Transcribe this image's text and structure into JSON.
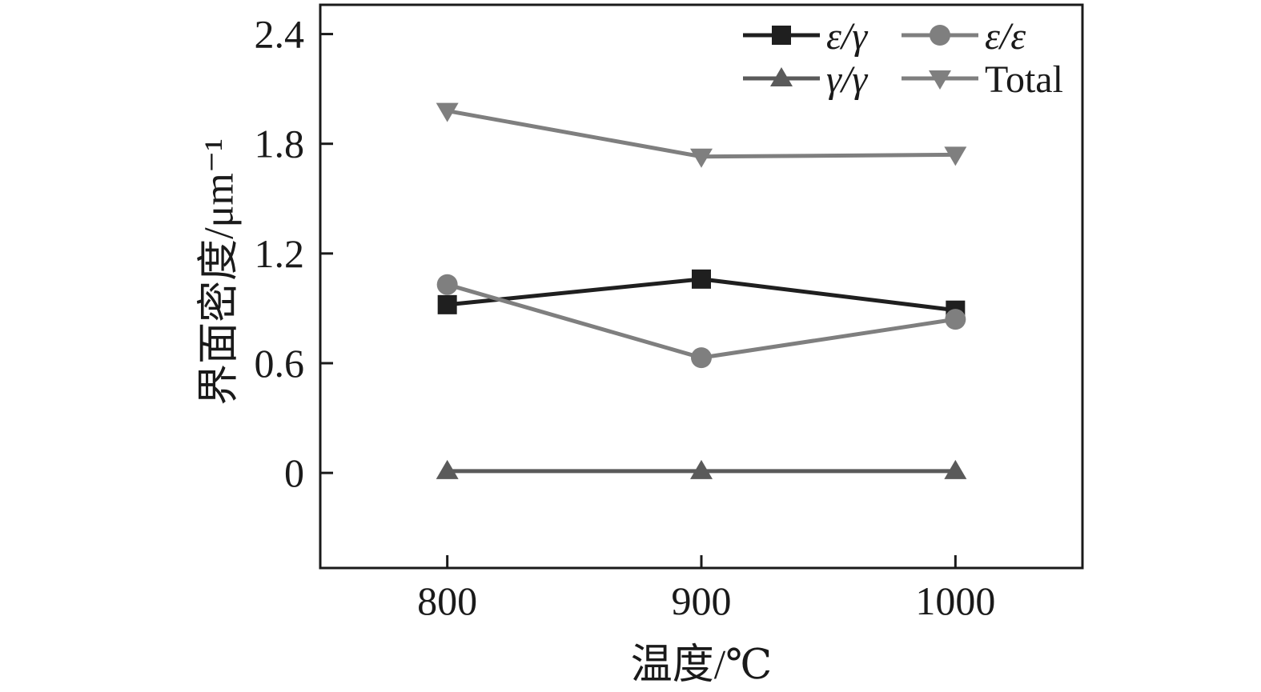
{
  "window": {
    "background": "#ffffff"
  },
  "chart_data": {
    "type": "line",
    "title": "",
    "xlabel": "温度/℃",
    "ylabel": "界面密度/μm⁻¹",
    "x": [
      800,
      900,
      1000
    ],
    "xticks": [
      800,
      900,
      1000
    ],
    "xtick_labels": [
      "800",
      "900",
      "1000"
    ],
    "yticks": [
      0,
      0.6,
      1.2,
      1.8,
      2.4
    ],
    "ytick_labels": [
      "0",
      "0.6",
      "1.2",
      "1.8",
      "2.4"
    ],
    "xlim": [
      750,
      1050
    ],
    "ylim": [
      -0.52,
      2.56
    ],
    "grid": false,
    "legend_position": "top-right-inside",
    "frame_color": "#1a1a1a",
    "text_color": "#1a1a1a",
    "series": [
      {
        "id": "epsilon-gamma",
        "name": "ε/γ",
        "marker": "square",
        "color": "#1f1f1f",
        "label_style": "italic",
        "values": [
          0.92,
          1.06,
          0.89
        ]
      },
      {
        "id": "epsilon-epsilon",
        "name": "ε/ε",
        "marker": "circle",
        "color": "#7f7f7f",
        "label_style": "italic",
        "values": [
          1.03,
          0.63,
          0.84
        ]
      },
      {
        "id": "gamma-gamma",
        "name": "γ/γ",
        "marker": "triangle-up",
        "color": "#5a5a5a",
        "label_style": "italic",
        "values": [
          0.01,
          0.01,
          0.01
        ]
      },
      {
        "id": "total",
        "name": "Total",
        "marker": "triangle-down",
        "color": "#7f7f7f",
        "label_style": "normal",
        "values": [
          1.98,
          1.73,
          1.74
        ]
      }
    ]
  }
}
